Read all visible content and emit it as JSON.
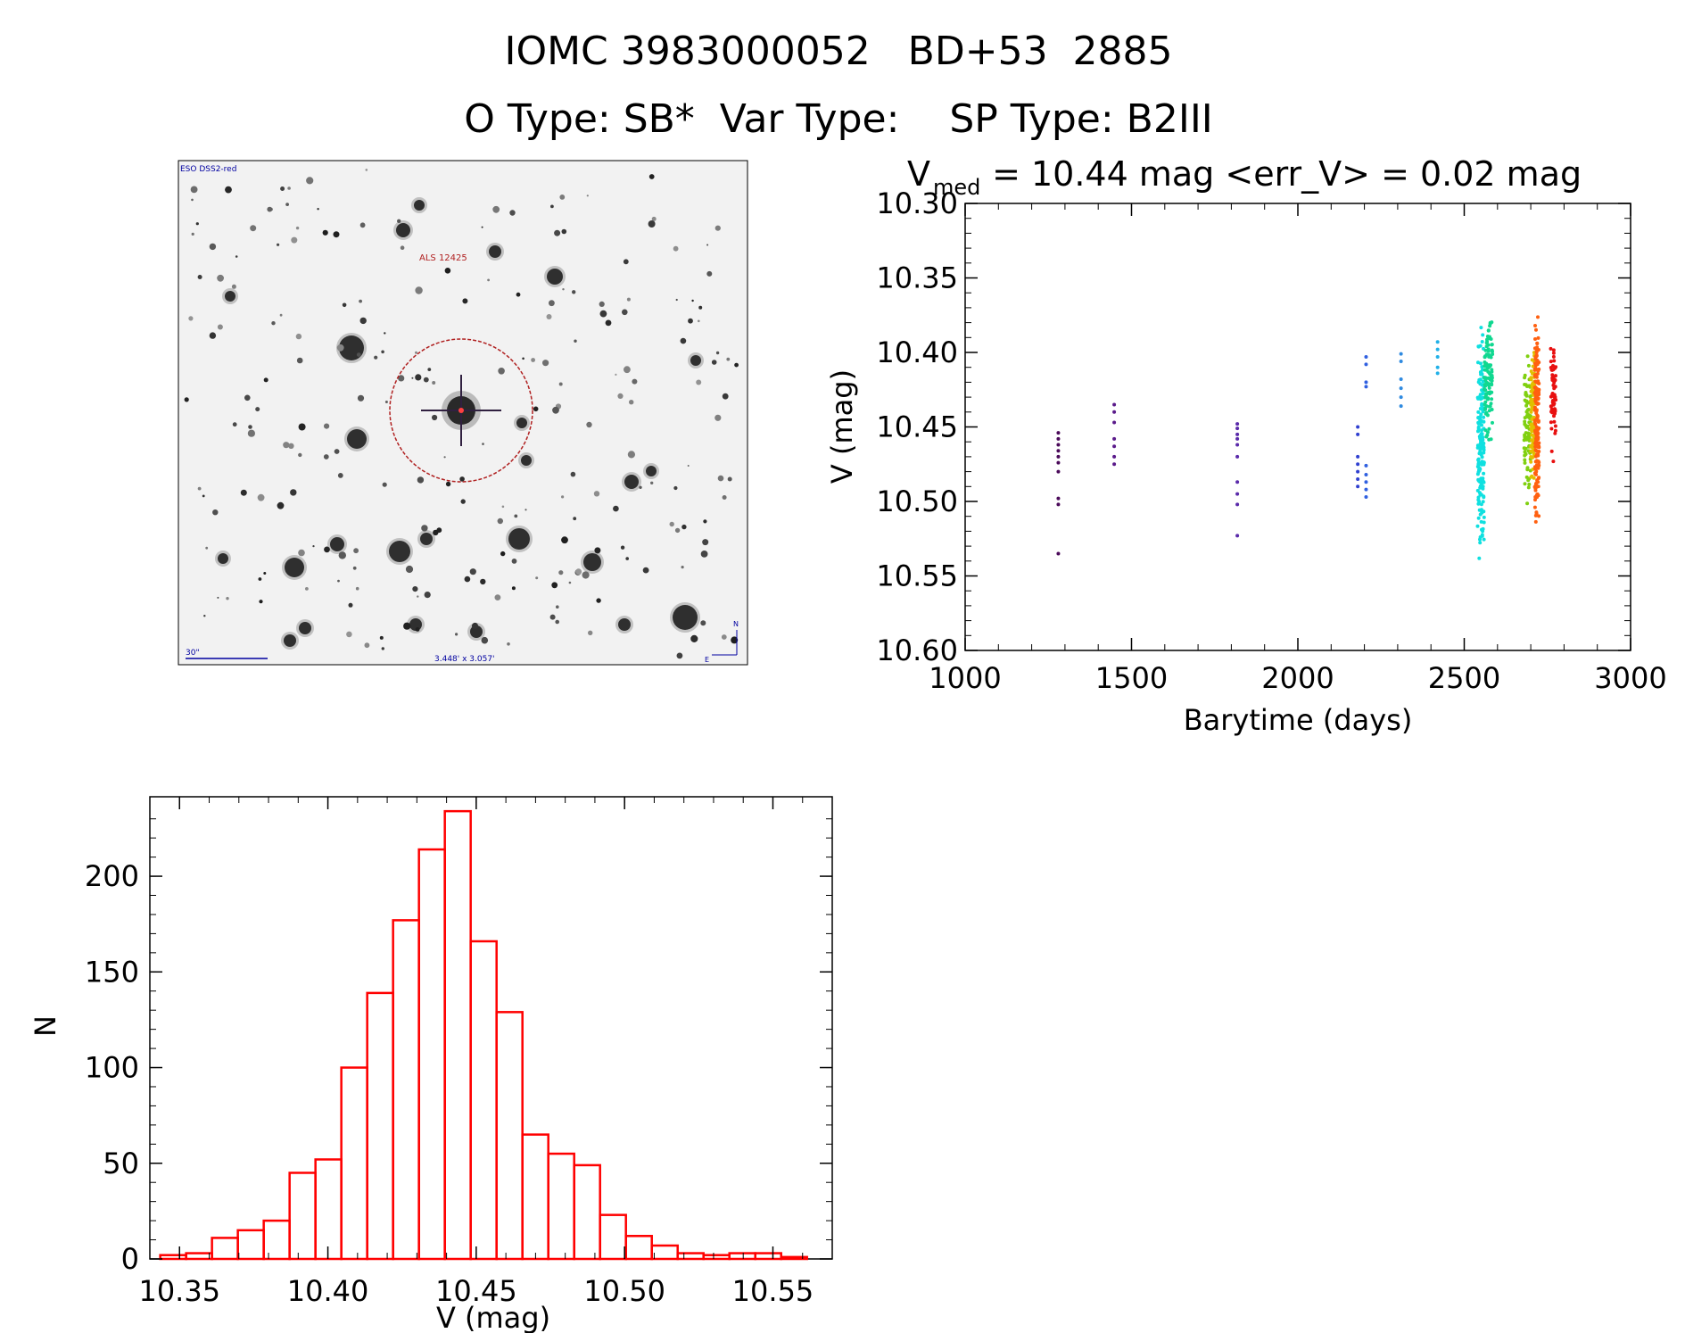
{
  "header": {
    "line1": "IOMC 3983000052   BD+53  2885",
    "line2": "O Type: SB*  Var Type:    SP Type: B2III"
  },
  "finder": {
    "survey_label": "ESO DSS2-red",
    "target_label": "ALS 12425",
    "scale_label": "30\"",
    "fov_label": "3.448' x 3.057'",
    "compass_n": "N",
    "compass_e": "E"
  },
  "chart_data": [
    {
      "type": "scatter",
      "title_main": "V",
      "title_sub": "med",
      "title_rest": " = 10.44 mag <err_V> = 0.02 mag",
      "xlabel": "Barytime (days)",
      "ylabel": "V (mag)",
      "xlim": [
        1000,
        3000
      ],
      "ylim": [
        10.6,
        10.3
      ],
      "y_inverted": true,
      "xticks": [
        "1000",
        "1500",
        "2000",
        "2500",
        "3000"
      ],
      "yticks": [
        "10.30",
        "10.35",
        "10.40",
        "10.45",
        "10.50",
        "10.55",
        "10.60"
      ],
      "color_scale": "rainbow by time",
      "groups": [
        {
          "x": 1280,
          "y": [
            10.454,
            10.458,
            10.462,
            10.466,
            10.47,
            10.474,
            10.48,
            10.498,
            10.502,
            10.535
          ],
          "color": "#4b0a5a"
        },
        {
          "x": 1448,
          "y": [
            10.435,
            10.44,
            10.447,
            10.458,
            10.463,
            10.47,
            10.475
          ],
          "color": "#5a1a8a"
        },
        {
          "x": 1818,
          "y": [
            10.448,
            10.451,
            10.455,
            10.458,
            10.462,
            10.47,
            10.487,
            10.495,
            10.502,
            10.523
          ],
          "color": "#5a2aaa"
        },
        {
          "x": 2180,
          "y": [
            10.45,
            10.455,
            10.47,
            10.475,
            10.48,
            10.485,
            10.49
          ],
          "color": "#3040d0"
        },
        {
          "x": 2205,
          "y": [
            10.403,
            10.408,
            10.42,
            10.423,
            10.476,
            10.482,
            10.487,
            10.492,
            10.497
          ],
          "color": "#3060e0"
        },
        {
          "x": 2310,
          "y": [
            10.401,
            10.406,
            10.418,
            10.424,
            10.43,
            10.436
          ],
          "color": "#2f8ae0"
        },
        {
          "x": 2420,
          "y": [
            10.393,
            10.398,
            10.403,
            10.41,
            10.414
          ],
          "color": "#20b0e8"
        },
        {
          "x_range": [
            2540,
            2560
          ],
          "y_range": [
            10.37,
            10.56
          ],
          "n": 170,
          "color": "#10e0e0"
        },
        {
          "x_range": [
            2560,
            2585
          ],
          "y_range": [
            10.365,
            10.47
          ],
          "n": 110,
          "color": "#10d890"
        },
        {
          "x_range": [
            2680,
            2700
          ],
          "y_range": [
            10.385,
            10.51
          ],
          "n": 80,
          "color": "#80d010"
        },
        {
          "x_range": [
            2700,
            2712
          ],
          "y_range": [
            10.37,
            10.5
          ],
          "n": 90,
          "color": "#e0c000"
        },
        {
          "x_range": [
            2712,
            2725
          ],
          "y_range": [
            10.345,
            10.542
          ],
          "n": 170,
          "color": "#ff6010"
        },
        {
          "x_range": [
            2760,
            2775
          ],
          "y_range": [
            10.375,
            10.48
          ],
          "n": 60,
          "color": "#e81010"
        }
      ]
    },
    {
      "type": "bar",
      "subtype": "histogram",
      "xlabel": "V (mag)",
      "ylabel": "N",
      "xlim": [
        10.34,
        10.57
      ],
      "ylim": [
        0,
        235
      ],
      "xticks": [
        "10.35",
        "10.40",
        "10.45",
        "10.50",
        "10.55"
      ],
      "yticks": [
        "0",
        "50",
        "100",
        "150",
        "200"
      ],
      "bin_edges_start": 10.3435,
      "bin_width": 0.00872,
      "values": [
        2,
        3,
        11,
        15,
        20,
        45,
        52,
        100,
        139,
        177,
        214,
        234,
        166,
        129,
        65,
        55,
        49,
        23,
        12,
        7,
        3,
        2,
        3,
        3,
        1
      ],
      "color": "#ff0000"
    }
  ]
}
